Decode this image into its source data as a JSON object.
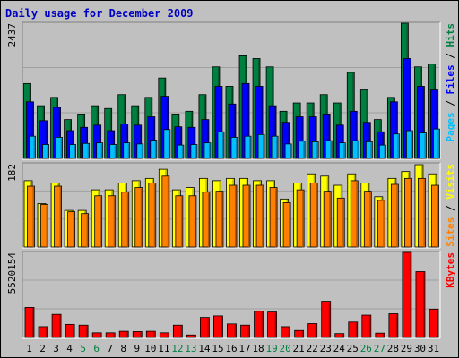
{
  "title": "Daily usage for December 2009",
  "colors": {
    "hits": "#008040",
    "files": "#0000ff",
    "pages": "#00c0ff",
    "visits": "#ffff00",
    "sites": "#ff8000",
    "kbytes": "#ff0000",
    "weekend_day": "#008040",
    "weekday": "#000000",
    "panel_bg": "#c0c0c0"
  },
  "chart_data": [
    {
      "type": "bar",
      "panel": "hits-files-pages",
      "max_label": "2437",
      "legend": [
        {
          "key": "pages",
          "text": "Pages"
        },
        {
          "key": "sep1",
          "text": " / "
        },
        {
          "key": "files",
          "text": "Files"
        },
        {
          "key": "sep2",
          "text": " / "
        },
        {
          "key": "hits",
          "text": "Hits"
        }
      ],
      "ylim": [
        0,
        2437
      ],
      "categories": [
        "1",
        "2",
        "3",
        "4",
        "5",
        "6",
        "7",
        "8",
        "9",
        "10",
        "11",
        "12",
        "13",
        "14",
        "15",
        "16",
        "17",
        "18",
        "19",
        "20",
        "21",
        "22",
        "23",
        "24",
        "25",
        "26",
        "27",
        "28",
        "29",
        "30",
        "31"
      ],
      "series": [
        {
          "name": "Hits",
          "color_key": "hits",
          "values": [
            1350,
            950,
            1100,
            700,
            800,
            950,
            900,
            1150,
            950,
            1100,
            1450,
            800,
            850,
            1150,
            1650,
            1300,
            1850,
            1800,
            1650,
            850,
            1000,
            1000,
            1150,
            1000,
            1550,
            1250,
            700,
            1100,
            2437,
            1650,
            1700
          ]
        },
        {
          "name": "Files",
          "color_key": "files",
          "values": [
            1020,
            680,
            920,
            500,
            560,
            600,
            500,
            620,
            600,
            750,
            1120,
            570,
            560,
            700,
            1300,
            980,
            1350,
            1300,
            950,
            650,
            750,
            750,
            800,
            600,
            850,
            650,
            480,
            1020,
            1800,
            1300,
            1250
          ]
        },
        {
          "name": "Pages",
          "color_key": "pages",
          "values": [
            400,
            250,
            380,
            250,
            270,
            280,
            250,
            280,
            260,
            330,
            520,
            240,
            250,
            280,
            480,
            380,
            400,
            430,
            400,
            260,
            310,
            300,
            320,
            280,
            320,
            300,
            240,
            440,
            500,
            460,
            530
          ]
        }
      ]
    },
    {
      "type": "bar",
      "panel": "visits-sites",
      "max_label": "182",
      "legend": [
        {
          "key": "sites",
          "text": "Sites"
        },
        {
          "key": "sep1",
          "text": " / "
        },
        {
          "key": "visits",
          "text": "Visits"
        }
      ],
      "ylim": [
        0,
        182
      ],
      "categories": [
        "1",
        "2",
        "3",
        "4",
        "5",
        "6",
        "7",
        "8",
        "9",
        "10",
        "11",
        "12",
        "13",
        "14",
        "15",
        "16",
        "17",
        "18",
        "19",
        "20",
        "21",
        "22",
        "23",
        "24",
        "25",
        "26",
        "27",
        "28",
        "29",
        "30",
        "31"
      ],
      "series": [
        {
          "name": "Visits",
          "color_key": "visits",
          "values": [
            145,
            95,
            140,
            80,
            80,
            125,
            125,
            140,
            145,
            150,
            170,
            125,
            130,
            150,
            145,
            150,
            150,
            145,
            145,
            105,
            140,
            160,
            155,
            135,
            160,
            140,
            110,
            150,
            165,
            180,
            160
          ]
        },
        {
          "name": "Sites",
          "color_key": "sites",
          "values": [
            133,
            93,
            133,
            77,
            73,
            112,
            112,
            120,
            130,
            140,
            155,
            112,
            112,
            120,
            122,
            135,
            135,
            135,
            130,
            97,
            125,
            140,
            122,
            107,
            145,
            122,
            102,
            137,
            150,
            150,
            135
          ]
        }
      ]
    },
    {
      "type": "bar",
      "panel": "kbytes",
      "max_label": "5520154",
      "legend": [
        {
          "key": "kbytes",
          "text": "KBytes"
        }
      ],
      "ylim": [
        0,
        5520154
      ],
      "categories": [
        "1",
        "2",
        "3",
        "4",
        "5",
        "6",
        "7",
        "8",
        "9",
        "10",
        "11",
        "12",
        "13",
        "14",
        "15",
        "16",
        "17",
        "18",
        "19",
        "20",
        "21",
        "22",
        "23",
        "24",
        "25",
        "26",
        "27",
        "28",
        "29",
        "30",
        "31"
      ],
      "series": [
        {
          "name": "KBytes",
          "color_key": "kbytes",
          "values": [
            1950000,
            700000,
            1500000,
            850000,
            800000,
            300000,
            300000,
            400000,
            380000,
            400000,
            300000,
            800000,
            160000,
            1300000,
            1400000,
            880000,
            800000,
            1700000,
            1650000,
            700000,
            450000,
            900000,
            2350000,
            250000,
            1000000,
            1450000,
            280000,
            1540000,
            5520154,
            4270000,
            1840000
          ]
        }
      ]
    }
  ]
}
